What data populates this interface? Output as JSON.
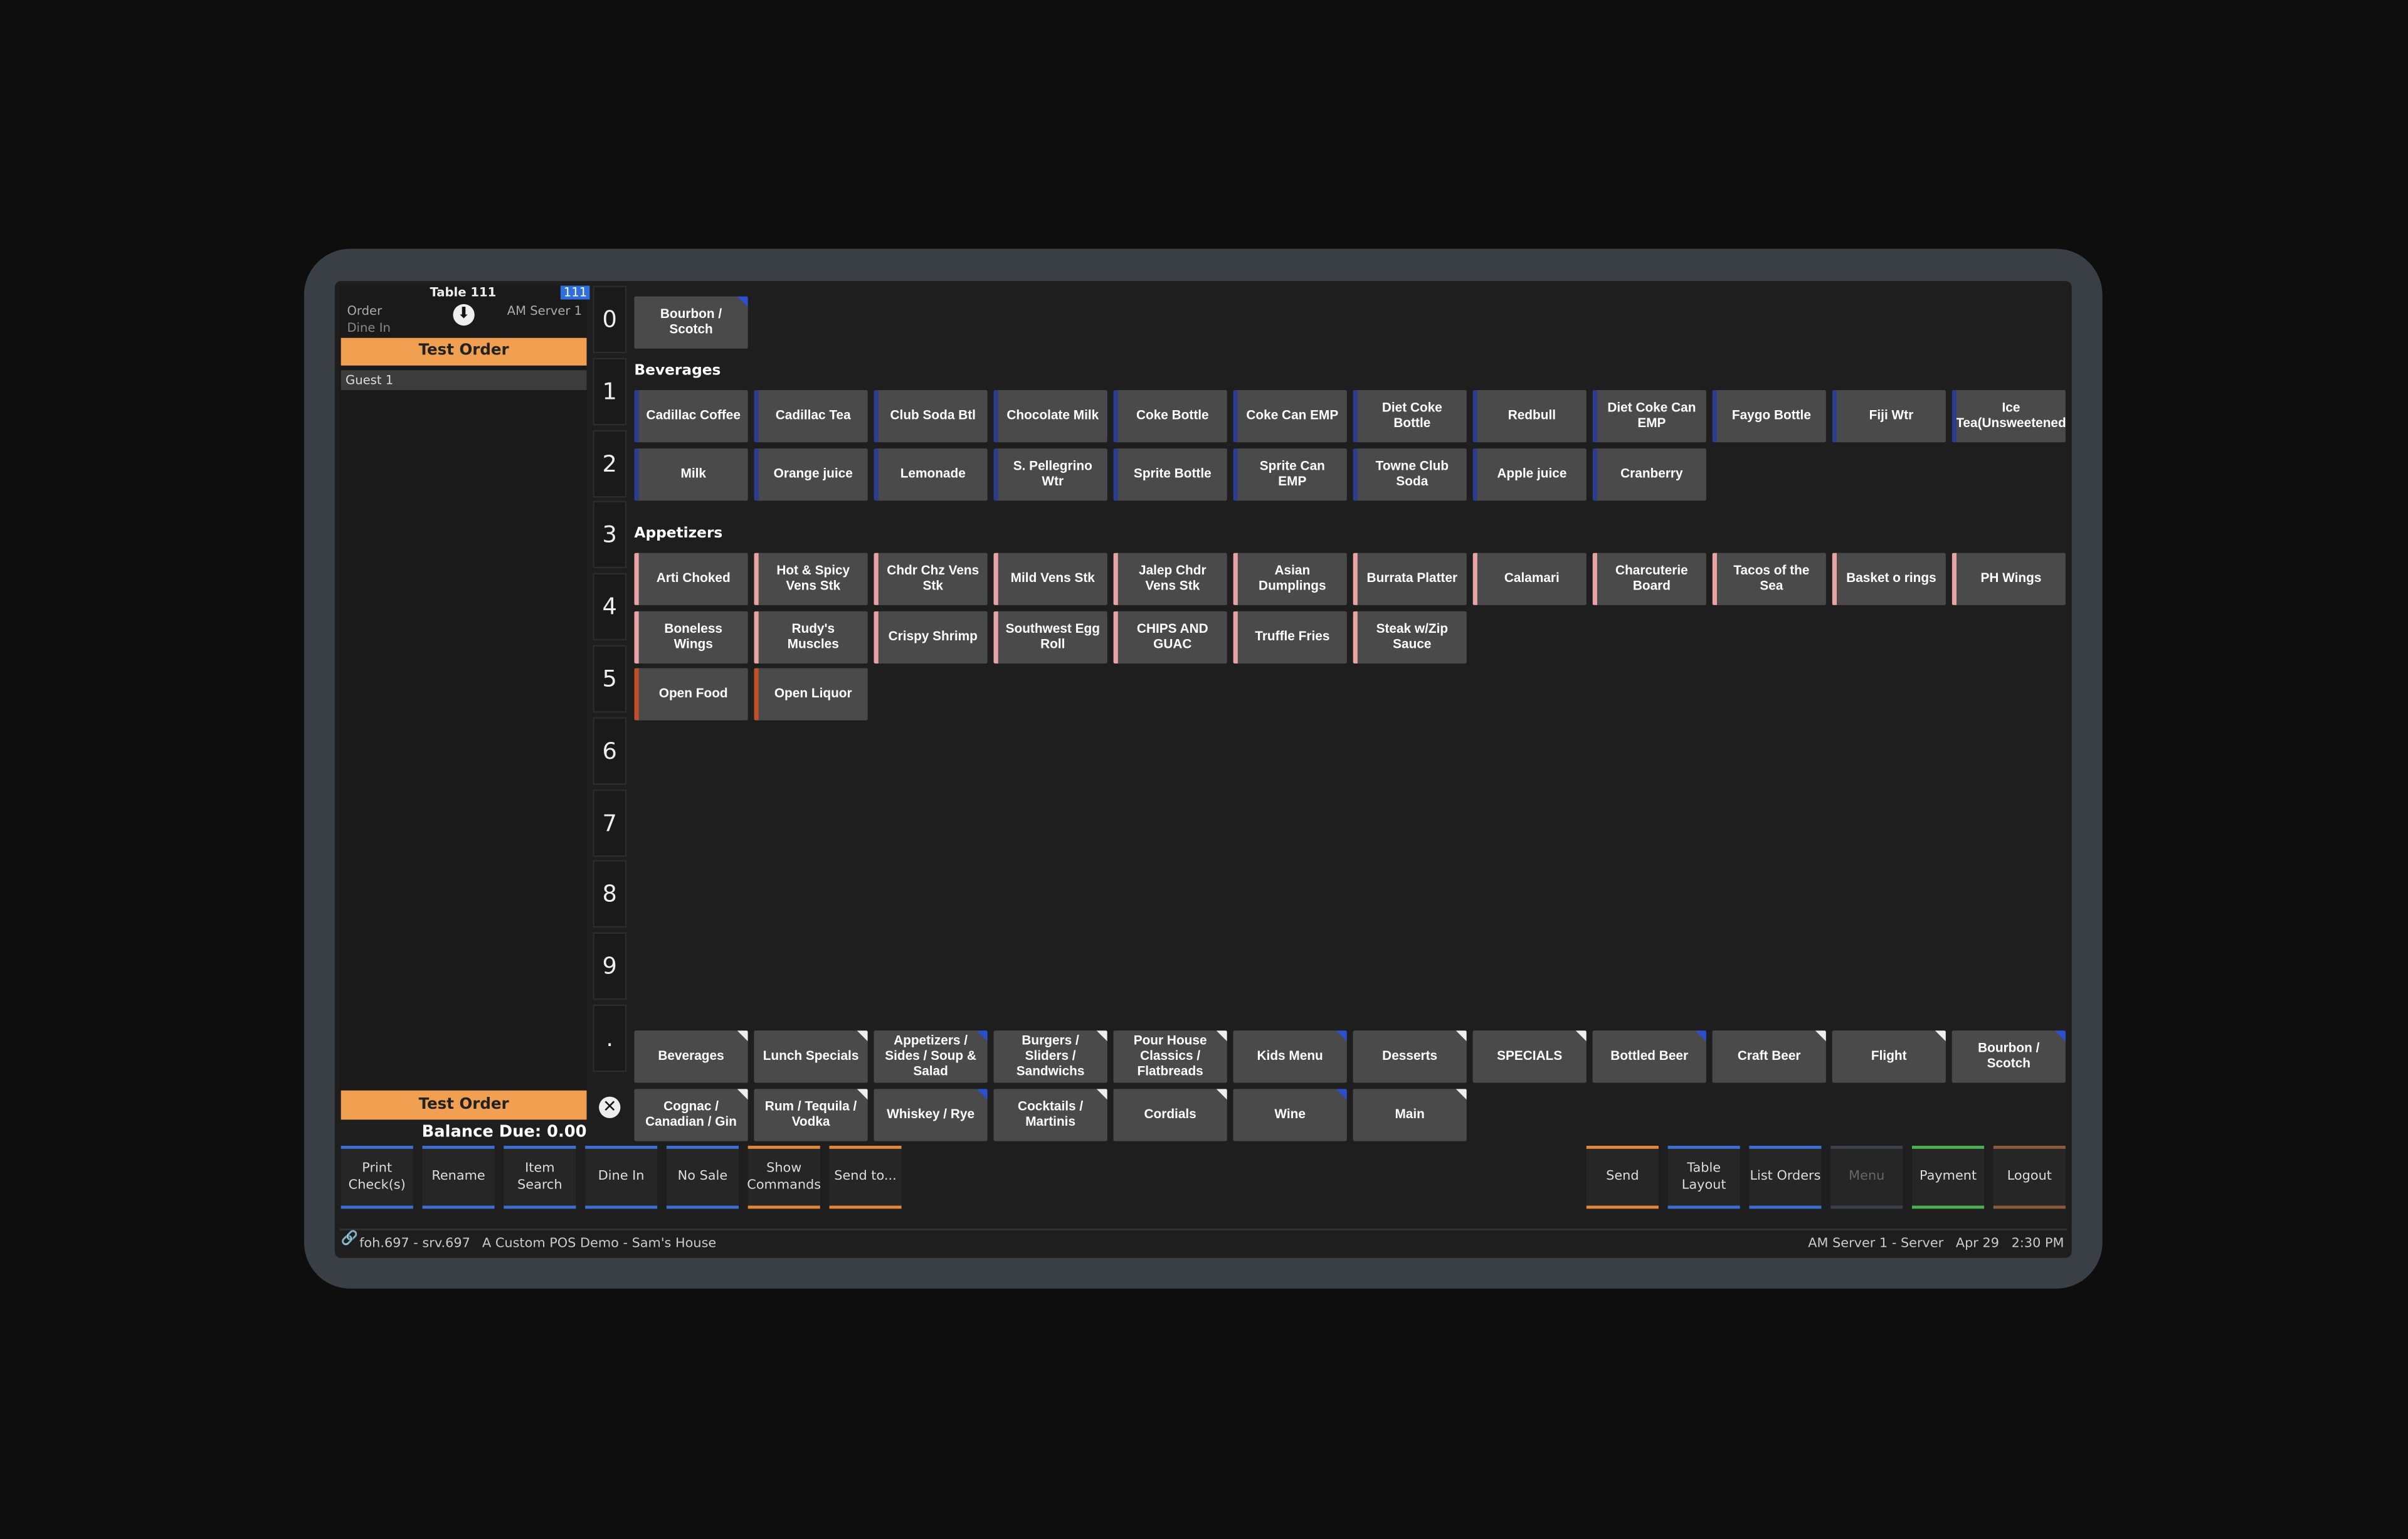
{
  "order_panel": {
    "table": "Table 111",
    "badge": "111",
    "order_label": "Order",
    "order_type": "Dine In",
    "server": "AM Server 1",
    "order_name": "Test Order",
    "guest": "Guest 1",
    "footer_order_name": "Test Order",
    "balance_due": "Balance Due: 0.00"
  },
  "numpad": [
    "0",
    "1",
    "2",
    "3",
    "4",
    "5",
    "6",
    "7",
    "8",
    "9",
    "."
  ],
  "menu": {
    "top_items": [
      "Bourbon / Scotch"
    ],
    "sections": [
      {
        "title": "Beverages",
        "accent": "#2b3d8c",
        "items": [
          "Cadillac Coffee",
          "Cadillac Tea",
          "Club Soda Btl",
          "Chocolate Milk",
          "Coke Bottle",
          "Coke Can EMP",
          "Diet Coke Bottle",
          "Redbull",
          "Diet Coke Can EMP",
          "Faygo Bottle",
          "Fiji Wtr",
          "Ice Tea(Unsweetened",
          "Milk",
          "Orange juice",
          "Lemonade",
          "S. Pellegrino Wtr",
          "Sprite Bottle",
          "Sprite Can EMP",
          "Towne Club Soda",
          "Apple juice",
          "Cranberry"
        ]
      },
      {
        "title": "Appetizers",
        "accent": "#e8a4a4",
        "items": [
          "Arti Choked",
          "Hot & Spicy Vens Stk",
          "Chdr Chz Vens Stk",
          "Mild Vens Stk",
          "Jalep Chdr Vens Stk",
          "Asian Dumplings",
          "Burrata Platter",
          "Calamari",
          "Charcuterie Board",
          "Tacos of the Sea",
          "Basket o rings",
          "PH Wings",
          "Boneless Wings",
          "Rudy's Muscles",
          "Crispy Shrimp",
          "Southwest Egg Roll",
          "CHIPS AND GUAC",
          "Truffle Fries",
          "Steak w/Zip Sauce"
        ]
      }
    ],
    "open_items": {
      "accent": "#c0502a",
      "items": [
        "Open Food",
        "Open Liquor"
      ]
    }
  },
  "categories": [
    "Beverages",
    "Lunch Specials",
    "Appetizers / Sides / Soup & Salad",
    "Burgers / Sliders / Sandwichs",
    "Pour House Classics / Flatbreads",
    "Kids Menu",
    "Desserts",
    "SPECIALS",
    "Bottled Beer",
    "Craft Beer",
    "Flight",
    "Bourbon / Scotch",
    "Cognac / Canadian / Gin",
    "Rum / Tequila / Vodka",
    "Whiskey / Rye",
    "Cocktails / Martinis",
    "Cordials",
    "Wine",
    "Main"
  ],
  "toolbar": {
    "left": [
      {
        "label": "Print Check(s)",
        "color": "#3b6fd4"
      },
      {
        "label": "Rename",
        "color": "#3b6fd4"
      },
      {
        "label": "Item Search",
        "color": "#3b6fd4"
      },
      {
        "label": "Dine In",
        "color": "#3b6fd4"
      },
      {
        "label": "No Sale",
        "color": "#3b6fd4"
      },
      {
        "label": "Show Commands",
        "color": "#e0873a"
      },
      {
        "label": "Send to...",
        "color": "#e0873a"
      }
    ],
    "right": [
      {
        "label": "Send",
        "color": "#e0873a"
      },
      {
        "label": "Table Layout",
        "color": "#3b6fd4"
      },
      {
        "label": "List Orders",
        "color": "#3b6fd4"
      },
      {
        "label": "Menu",
        "color": "#3a3f4a"
      },
      {
        "label": "Payment",
        "color": "#4caf50"
      },
      {
        "label": "Logout",
        "color": "#8a5a3a"
      }
    ]
  },
  "status": {
    "left": [
      "foh.697 - srv.697",
      "A Custom POS Demo - Sam's House"
    ],
    "right": [
      "AM Server 1 - Server",
      "Apr 29",
      "2:30 PM"
    ]
  }
}
